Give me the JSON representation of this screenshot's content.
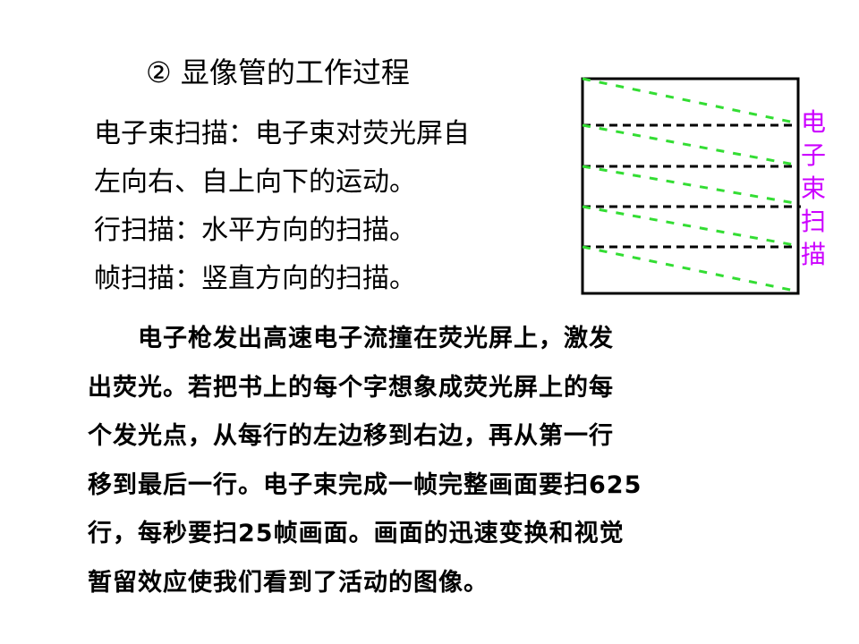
{
  "title": "② 显像管的工作过程",
  "definitions": [
    "电子束扫描：电子束对荧光屏自",
    "左向右、自上向下的运动。",
    "行扫描：水平方向的扫描。",
    "帧扫描：竖直方向的扫描。"
  ],
  "diagram": {
    "label_chars": [
      "电",
      "子",
      "束",
      "扫",
      "描"
    ],
    "colors": {
      "frame": "#000000",
      "scan_line": "#33dd33",
      "retrace": "#000000",
      "label": "#cc00ff"
    }
  },
  "paragraph": [
    "　　电子枪发出高速电子流撞在荧光屏上，激发",
    "出荧光。若把书上的每个字想象成荧光屏上的每",
    "个发光点，从每行的左边移到右边，再从第一行",
    "移到最后一行。电子束完成一帧完整画面要扫625",
    "行，每秒要扫25帧画面。画面的迅速变换和视觉",
    "暂留效应使我们看到了活动的图像。"
  ]
}
